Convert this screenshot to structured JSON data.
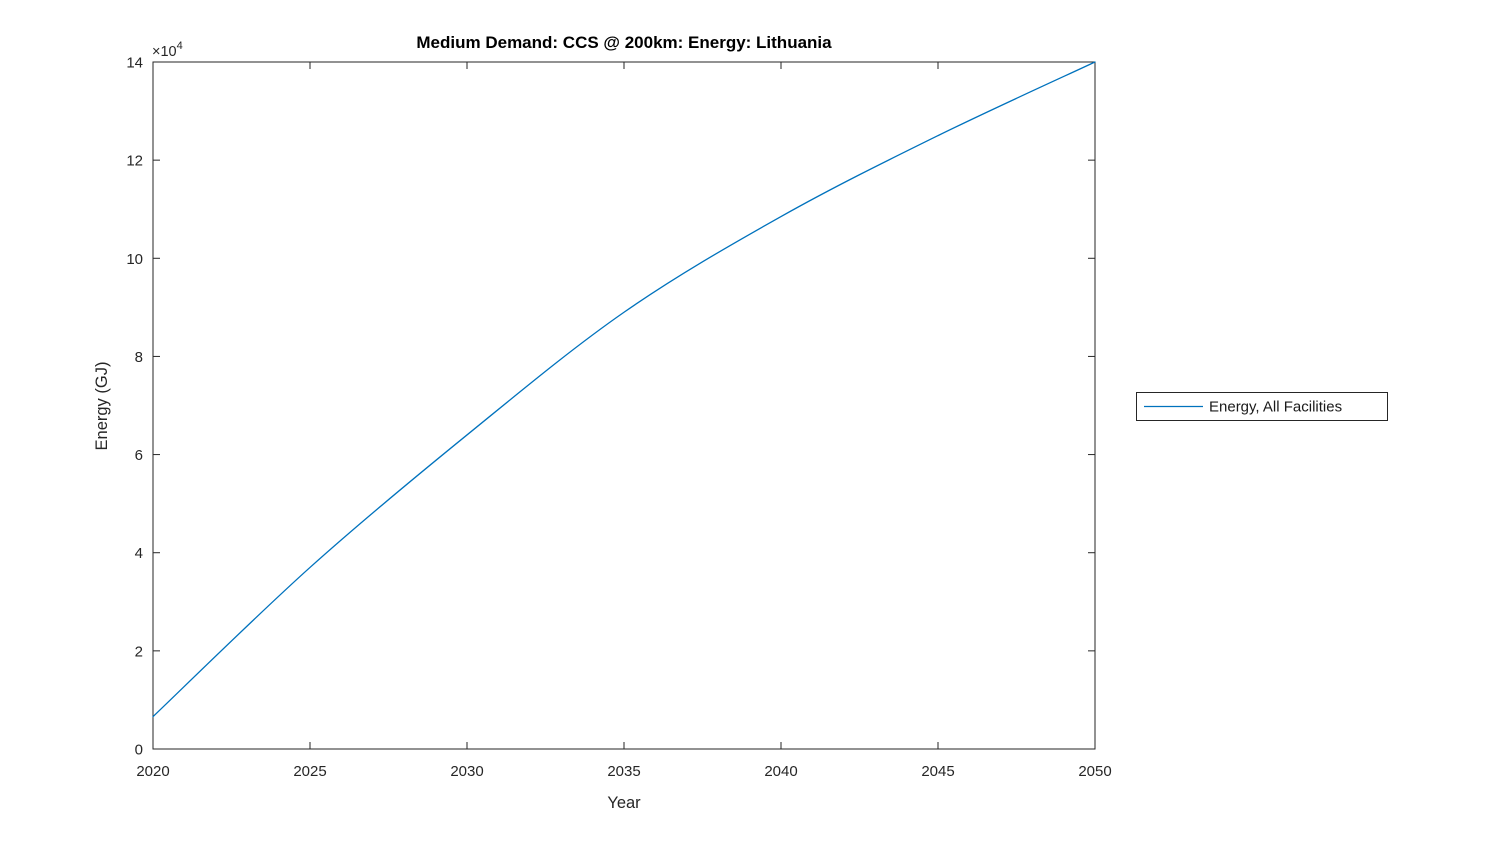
{
  "chart_data": {
    "type": "line",
    "title": "Medium Demand: CCS @ 200km: Energy: Lithuania",
    "xlabel": "Year",
    "ylabel": "Energy (GJ)",
    "series": [
      {
        "name": "Energy, All Facilities",
        "color": "#0072BD",
        "x": [
          2020,
          2025,
          2030,
          2035,
          2040,
          2045,
          2050
        ],
        "values": [
          6600,
          37000,
          64000,
          89000,
          108500,
          125000,
          140000
        ]
      }
    ],
    "xlim": [
      2020,
      2050
    ],
    "ylim": [
      0,
      140000
    ],
    "xticks": [
      2020,
      2025,
      2030,
      2035,
      2040,
      2045,
      2050
    ],
    "xtick_labels": [
      "2020",
      "2025",
      "2030",
      "2035",
      "2040",
      "2045",
      "2050"
    ],
    "yticks": [
      0,
      20000,
      40000,
      60000,
      80000,
      100000,
      120000,
      140000
    ],
    "ytick_labels": [
      "0",
      "2",
      "4",
      "6",
      "8",
      "10",
      "12",
      "14"
    ],
    "grid": false,
    "legend_position": "outside-right"
  },
  "y_multiplier": {
    "base": "×10",
    "exp": "4"
  },
  "colors": {
    "line": "#0072BD",
    "axis": "#262626",
    "tick_label": "#262626",
    "title": "#000000",
    "background": "#ffffff",
    "legend_border": "#262626",
    "legend_background": "#ffffff"
  }
}
